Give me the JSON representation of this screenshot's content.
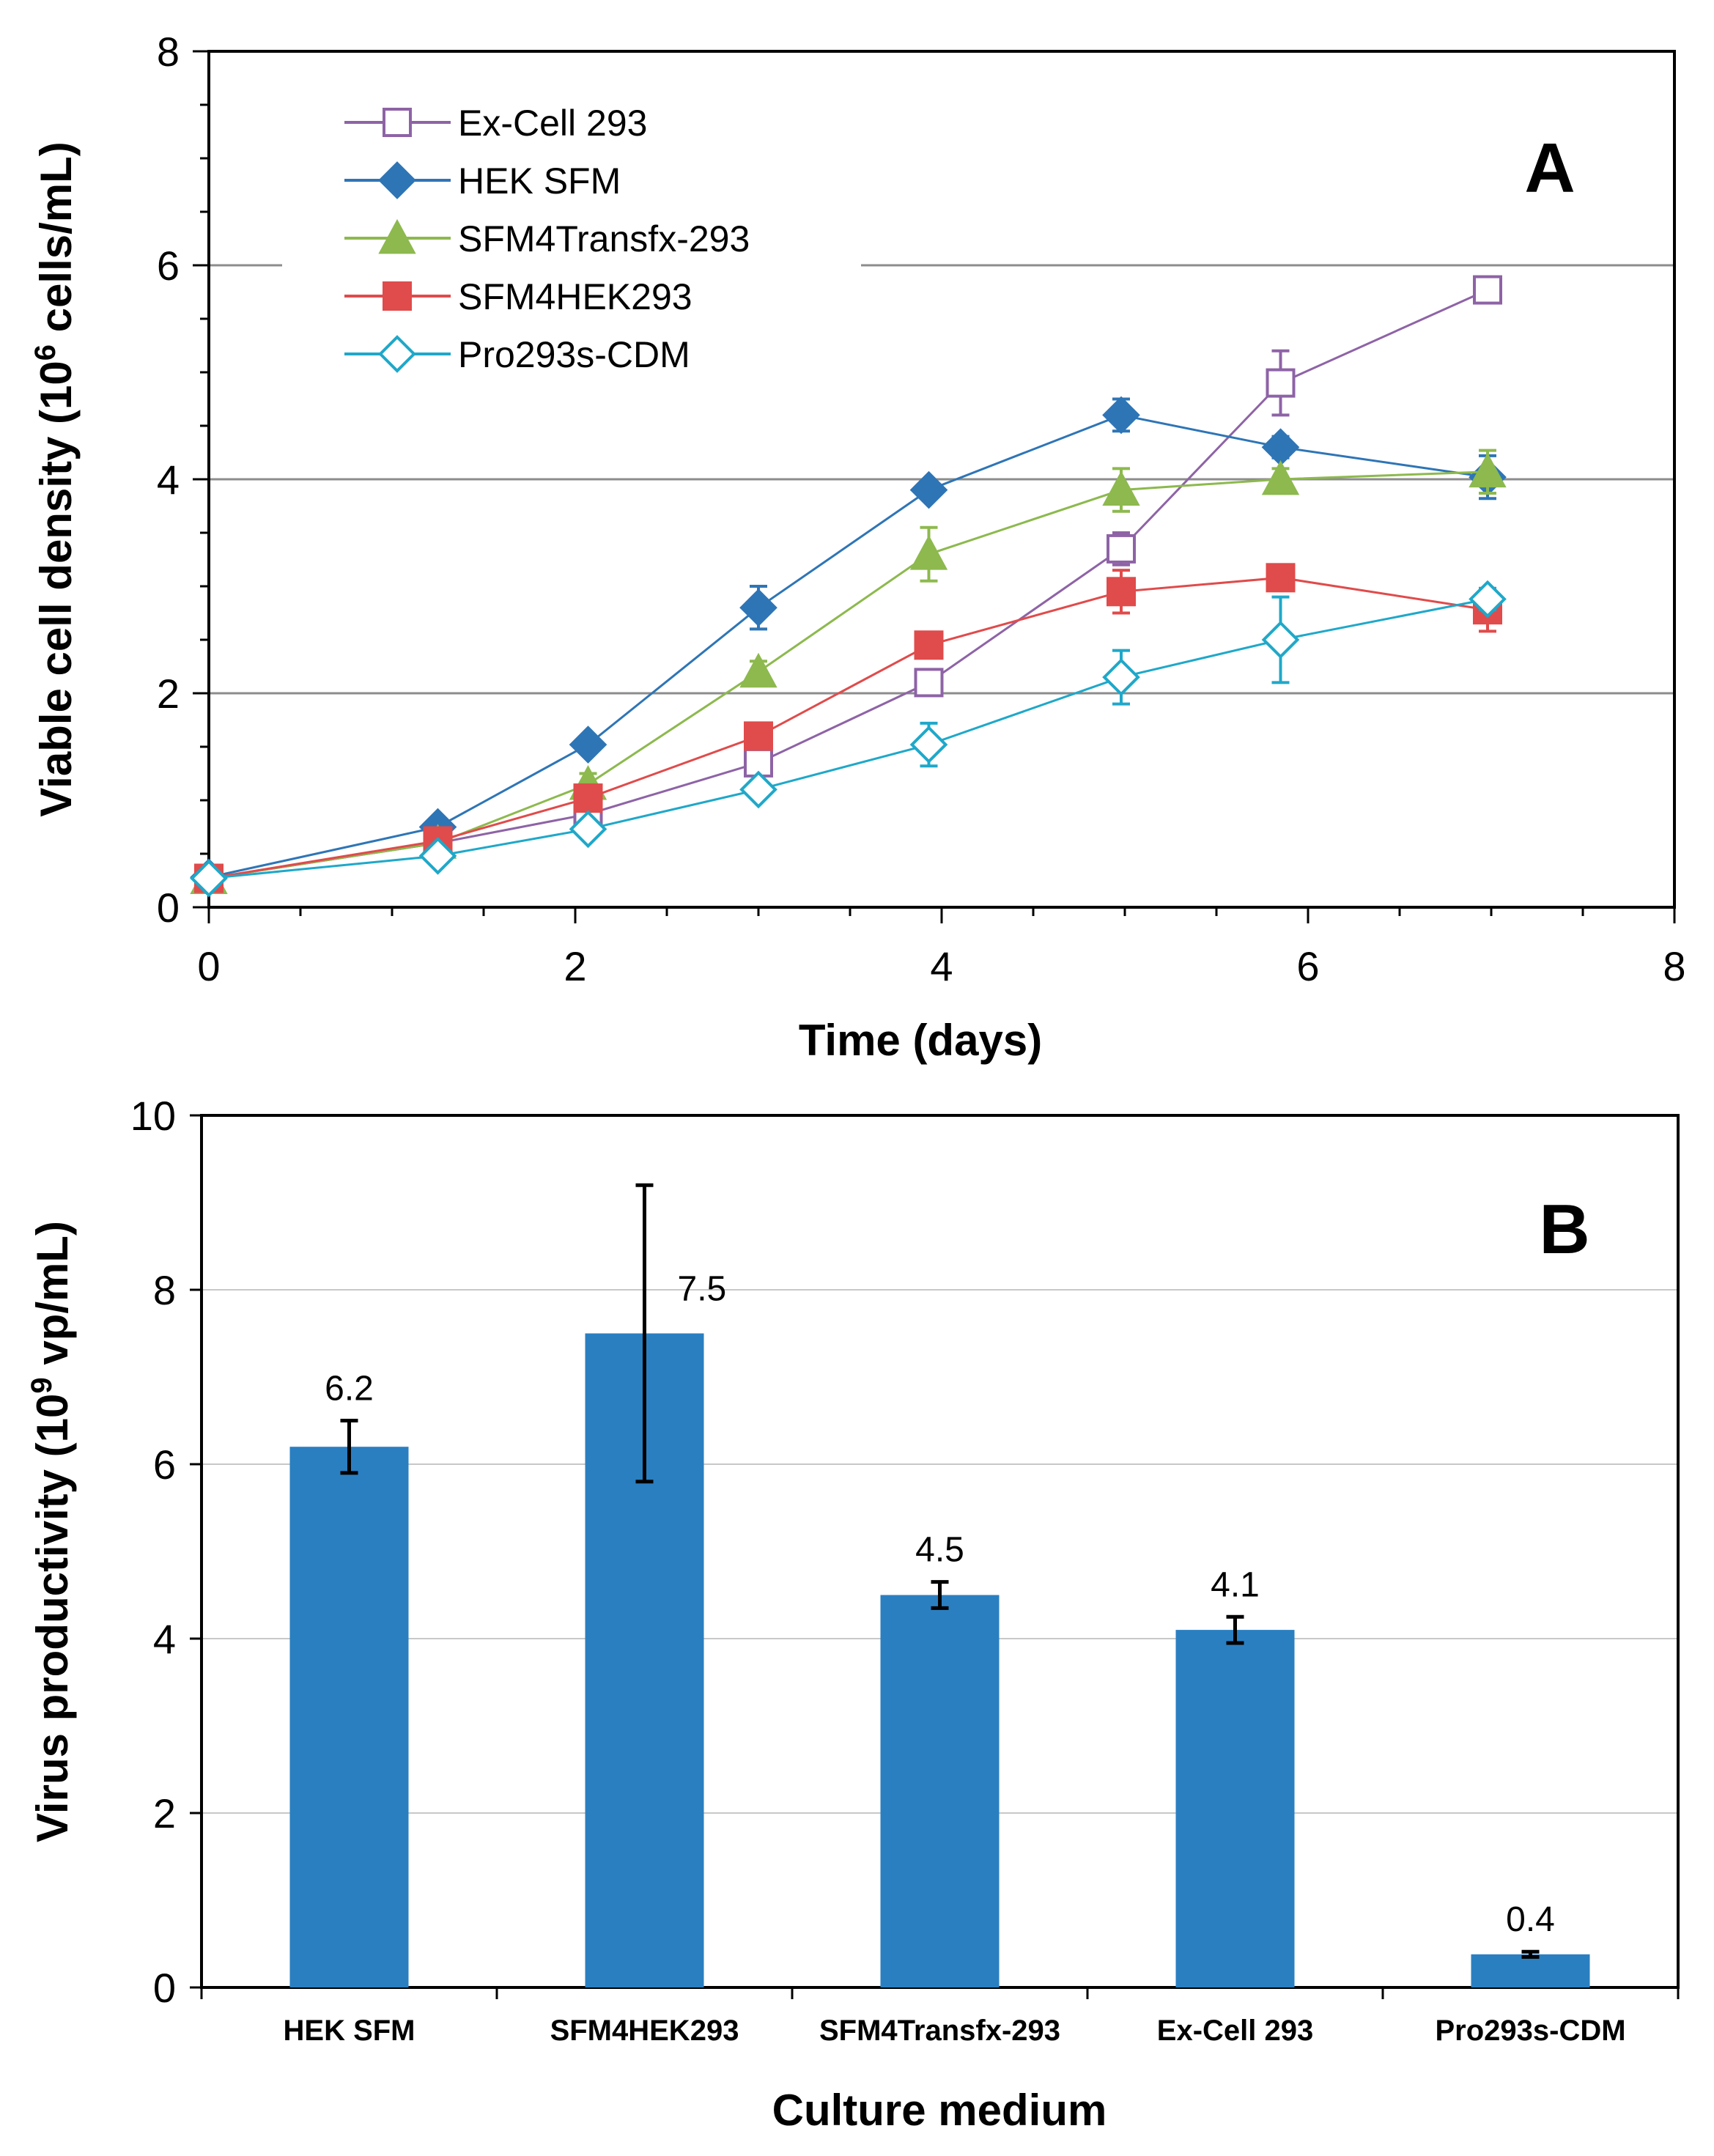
{
  "chart_data": [
    {
      "panel": "A",
      "type": "line",
      "xlabel": "Time (days)",
      "ylabel_main": "Viable cell density (10",
      "ylabel_sup": "6",
      "ylabel_end": " cells/mL)",
      "xlim": [
        0,
        8
      ],
      "ylim": [
        0,
        8
      ],
      "x_ticks": [
        0,
        2,
        4,
        6,
        8
      ],
      "y_ticks": [
        0,
        2,
        4,
        6,
        8
      ],
      "gridlines_y": [
        2,
        4,
        6
      ],
      "legend_position": "top-left",
      "series": [
        {
          "name": "Ex-Cell 293",
          "color": "#8E63A6",
          "marker": "square-open",
          "x": [
            0,
            1.25,
            2.07,
            3,
            3.93,
            4.98,
            5.85,
            6.98
          ],
          "y": [
            0.27,
            0.6,
            0.87,
            1.35,
            2.1,
            3.35,
            4.9,
            5.77
          ],
          "err": [
            0.05,
            0.05,
            0.05,
            0.1,
            0.1,
            0.15,
            0.3,
            0.1
          ]
        },
        {
          "name": "HEK SFM",
          "color": "#2E75B6",
          "marker": "diamond",
          "x": [
            0,
            1.25,
            2.07,
            3,
            3.93,
            4.98,
            5.85,
            6.98
          ],
          "y": [
            0.28,
            0.75,
            1.52,
            2.8,
            3.9,
            4.6,
            4.3,
            4.02
          ],
          "err": [
            0.05,
            0.05,
            0.05,
            0.2,
            0.05,
            0.15,
            0.1,
            0.2
          ]
        },
        {
          "name": "SFM4Transfx-293",
          "color": "#8DB94E",
          "marker": "triangle",
          "x": [
            0,
            1.25,
            2.07,
            3,
            3.93,
            4.98,
            5.85,
            6.98
          ],
          "y": [
            0.27,
            0.6,
            1.15,
            2.2,
            3.3,
            3.9,
            4.0,
            4.07
          ],
          "err": [
            0.05,
            0.05,
            0.1,
            0.1,
            0.25,
            0.2,
            0.1,
            0.2
          ]
        },
        {
          "name": "SFM4HEK293",
          "color": "#E04B4B",
          "marker": "square",
          "x": [
            0,
            1.25,
            2.07,
            3,
            3.93,
            4.98,
            5.85,
            6.98
          ],
          "y": [
            0.27,
            0.62,
            1.02,
            1.6,
            2.45,
            2.95,
            3.08,
            2.78
          ],
          "err": [
            0.05,
            0.05,
            0.05,
            0.1,
            0.05,
            0.2,
            0.1,
            0.2
          ]
        },
        {
          "name": "Pro293s-CDM",
          "color": "#1FA8C9",
          "marker": "diamond-open",
          "x": [
            0,
            1.25,
            2.07,
            3,
            3.93,
            4.98,
            5.85,
            6.98
          ],
          "y": [
            0.27,
            0.48,
            0.73,
            1.1,
            1.52,
            2.15,
            2.5,
            2.88
          ],
          "err": [
            0.05,
            0.05,
            0.05,
            0.05,
            0.2,
            0.25,
            0.4,
            0.1
          ]
        }
      ]
    },
    {
      "panel": "B",
      "type": "bar",
      "xlabel": "Culture medium",
      "ylabel_main": "Virus productivity (10",
      "ylabel_sup": "9",
      "ylabel_end": " vp/mL)",
      "ylim": [
        0,
        10
      ],
      "y_ticks": [
        0,
        2,
        4,
        6,
        8,
        10
      ],
      "gridlines_y": [
        2,
        4,
        6,
        8
      ],
      "bar_color": "#2A7FC1",
      "categories": [
        "HEK SFM",
        "SFM4HEK293",
        "SFM4Transfx-293",
        "Ex-Cell 293",
        "Pro293s-CDM"
      ],
      "values": [
        6.2,
        7.5,
        4.5,
        4.1,
        0.38
      ],
      "data_labels": [
        "6.2",
        "7.5",
        "4.5",
        "4.1",
        "0.4"
      ],
      "err_low": [
        0.3,
        1.7,
        0.15,
        0.15,
        0.03
      ],
      "err_high": [
        0.3,
        1.7,
        0.15,
        0.15,
        0.03
      ]
    }
  ]
}
